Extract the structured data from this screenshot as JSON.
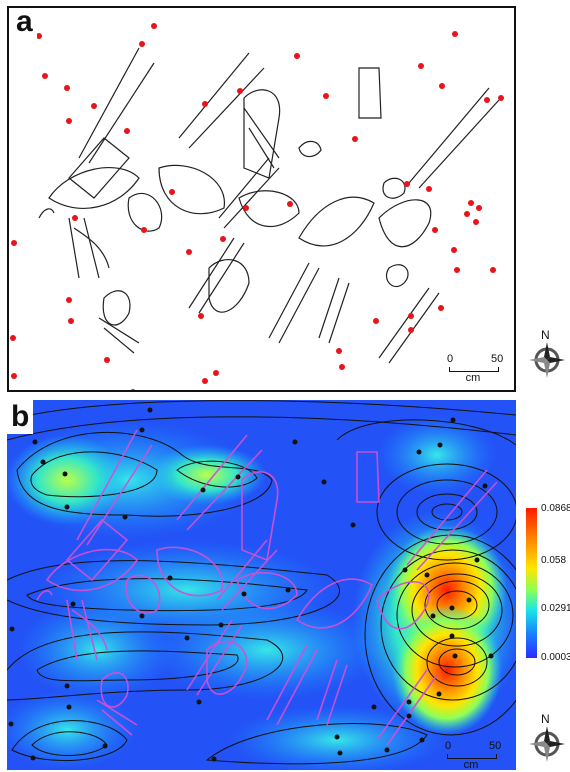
{
  "panel_a": {
    "letter": "a",
    "scale": {
      "start": "0",
      "end": "50",
      "unit": "cm"
    },
    "compass": "N"
  },
  "panel_b": {
    "letter": "b",
    "scale": {
      "start": "0",
      "end": "50",
      "unit": "cm"
    },
    "compass": "N",
    "colorbar": {
      "max": "0.0868",
      "mid_high": "0.058",
      "mid_low": "0.0291",
      "min": "0.00031",
      "colors": [
        "#ff1a00",
        "#ffe500",
        "#1ae6e6",
        "#2b2bff"
      ]
    }
  },
  "colors": {
    "points_a": "#e8131b",
    "points_b": "#111111",
    "overlay_b": "#d04fd8",
    "background_b": "#1f5fff"
  }
}
